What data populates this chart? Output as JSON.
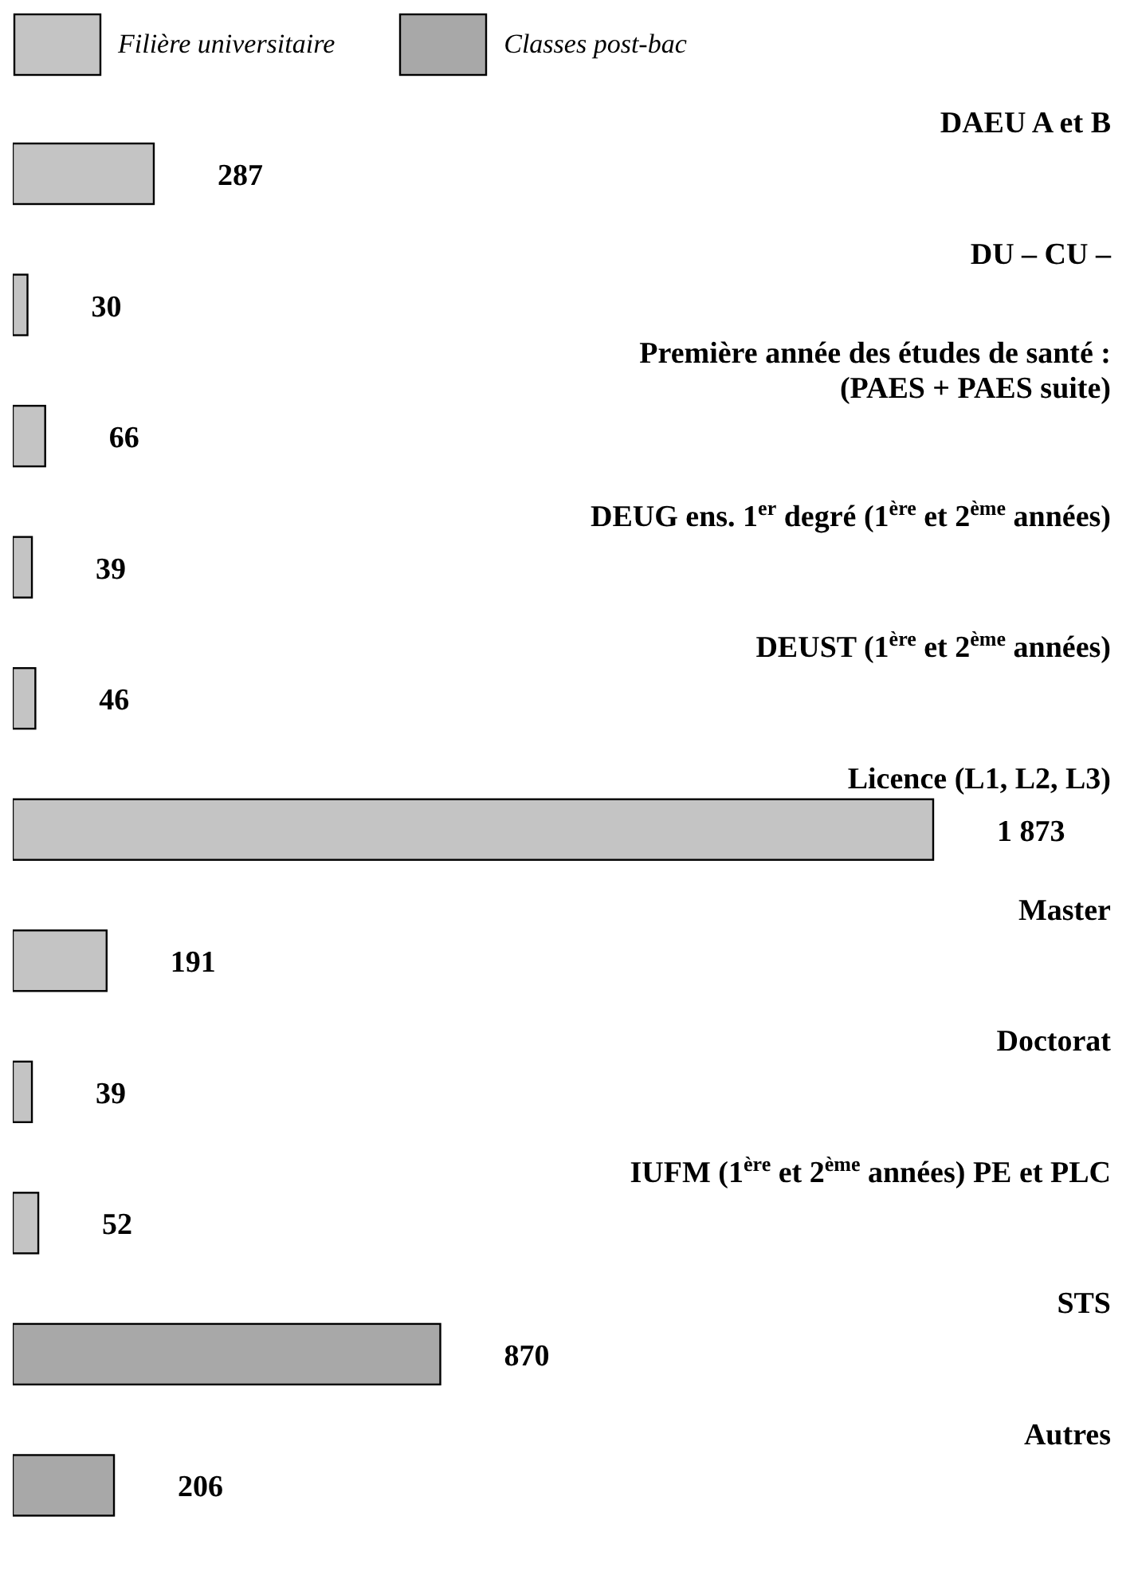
{
  "chart_data": {
    "type": "bar",
    "orientation": "horizontal",
    "stacked": true,
    "data_labels": true,
    "legend": "top left",
    "grid": false,
    "categories": [
      "DAEU A et B",
      "DU – CU –",
      "Première année des études de santé :\n(PAES + PAES suite)",
      "DEUG ens. 1$^{er}$ degré (1$^{ère}$ et 2$^{ème}$ années)",
      "DEUST (1$^{ère}$ et 2$^{ème}$ années)",
      "Licence (L1, L2, L3)",
      "Master",
      "Doctorat",
      "IUFM (1$^{ère}$ et 2$^{ème}$ années) PE et PLC",
      "STS",
      "Autres"
    ],
    "series": [
      {
        "name": "Filière universitaire",
        "color": "#c4c4c4",
        "values": [
          287,
          30,
          66,
          39,
          46,
          1873,
          191,
          39,
          52,
          null,
          null
        ],
        "value_labels": [
          "287",
          "30",
          "66",
          "39",
          "46",
          "1 873",
          "191",
          "39",
          "52",
          null,
          null
        ]
      },
      {
        "name": "Classes post-bac",
        "color": "#a8a8a8",
        "values": [
          null,
          null,
          null,
          null,
          null,
          null,
          null,
          null,
          null,
          870,
          206
        ],
        "value_labels": [
          null,
          null,
          null,
          null,
          null,
          null,
          null,
          null,
          null,
          "870",
          "206"
        ]
      }
    ]
  }
}
